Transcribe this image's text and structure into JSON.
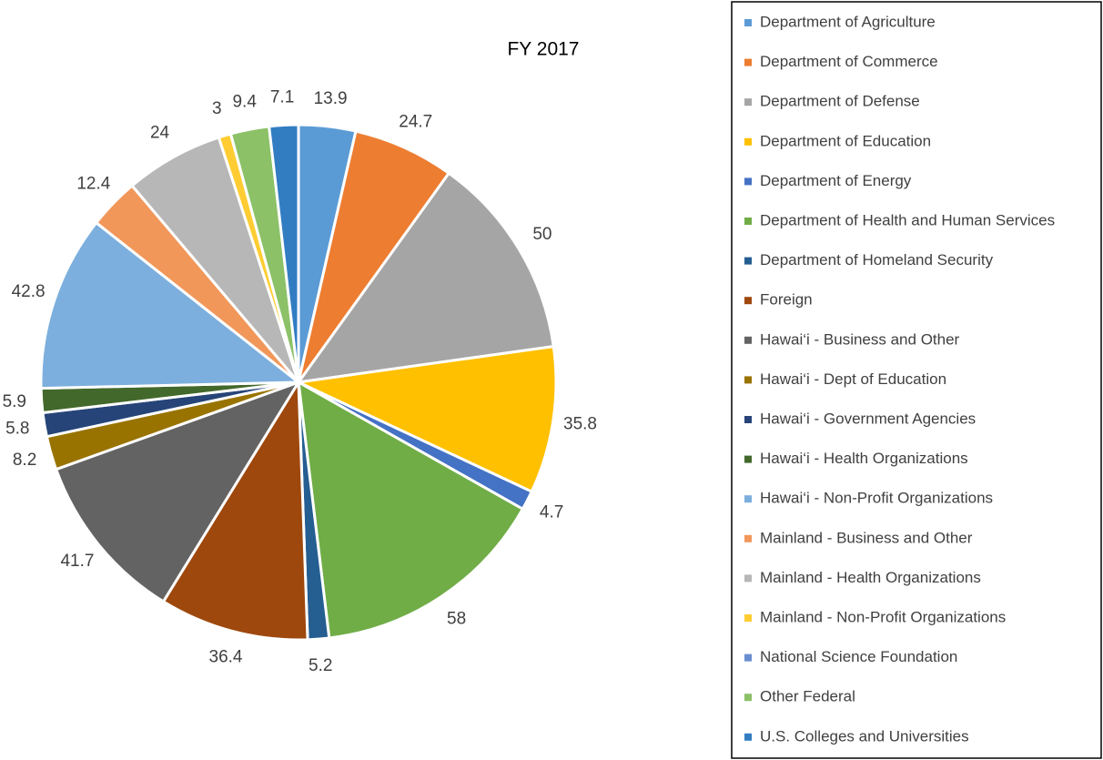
{
  "chart_data": {
    "type": "pie",
    "title": "FY 2017",
    "categories": [
      "Department of Agriculture",
      "Department of Commerce",
      "Department of Defense",
      "Department of Education",
      "Department of Energy",
      "Department of Health and Human Services",
      "Department of Homeland Security",
      "Foreign",
      "Hawai‘i - Business and Other",
      "Hawai‘i - Dept of Education",
      "Hawai‘i - Government Agencies",
      "Hawai‘i - Health Organizations",
      "Hawai‘i - Non-Profit Organizations",
      "Mainland - Business and Other",
      "Mainland - Health Organizations",
      "Mainland - Non-Profit Organizations",
      "National Science Foundation",
      "Other Federal",
      "U.S. Colleges and Universities"
    ],
    "values": [
      13.9,
      24.7,
      50,
      35.8,
      4.7,
      58,
      5.2,
      36.4,
      41.7,
      8.2,
      5.8,
      5.9,
      42.8,
      12.4,
      24,
      3,
      0,
      9.4,
      7.1
    ],
    "colors": [
      "#5b9bd5",
      "#ed7d31",
      "#a5a5a5",
      "#ffc000",
      "#4472c4",
      "#70ad47",
      "#255e91",
      "#9e480e",
      "#636363",
      "#997300",
      "#264478",
      "#43682b",
      "#7cafdd",
      "#f1975a",
      "#b7b7b7",
      "#ffcd33",
      "#698ed0",
      "#8cc168",
      "#327dc2"
    ],
    "legend": "right"
  }
}
